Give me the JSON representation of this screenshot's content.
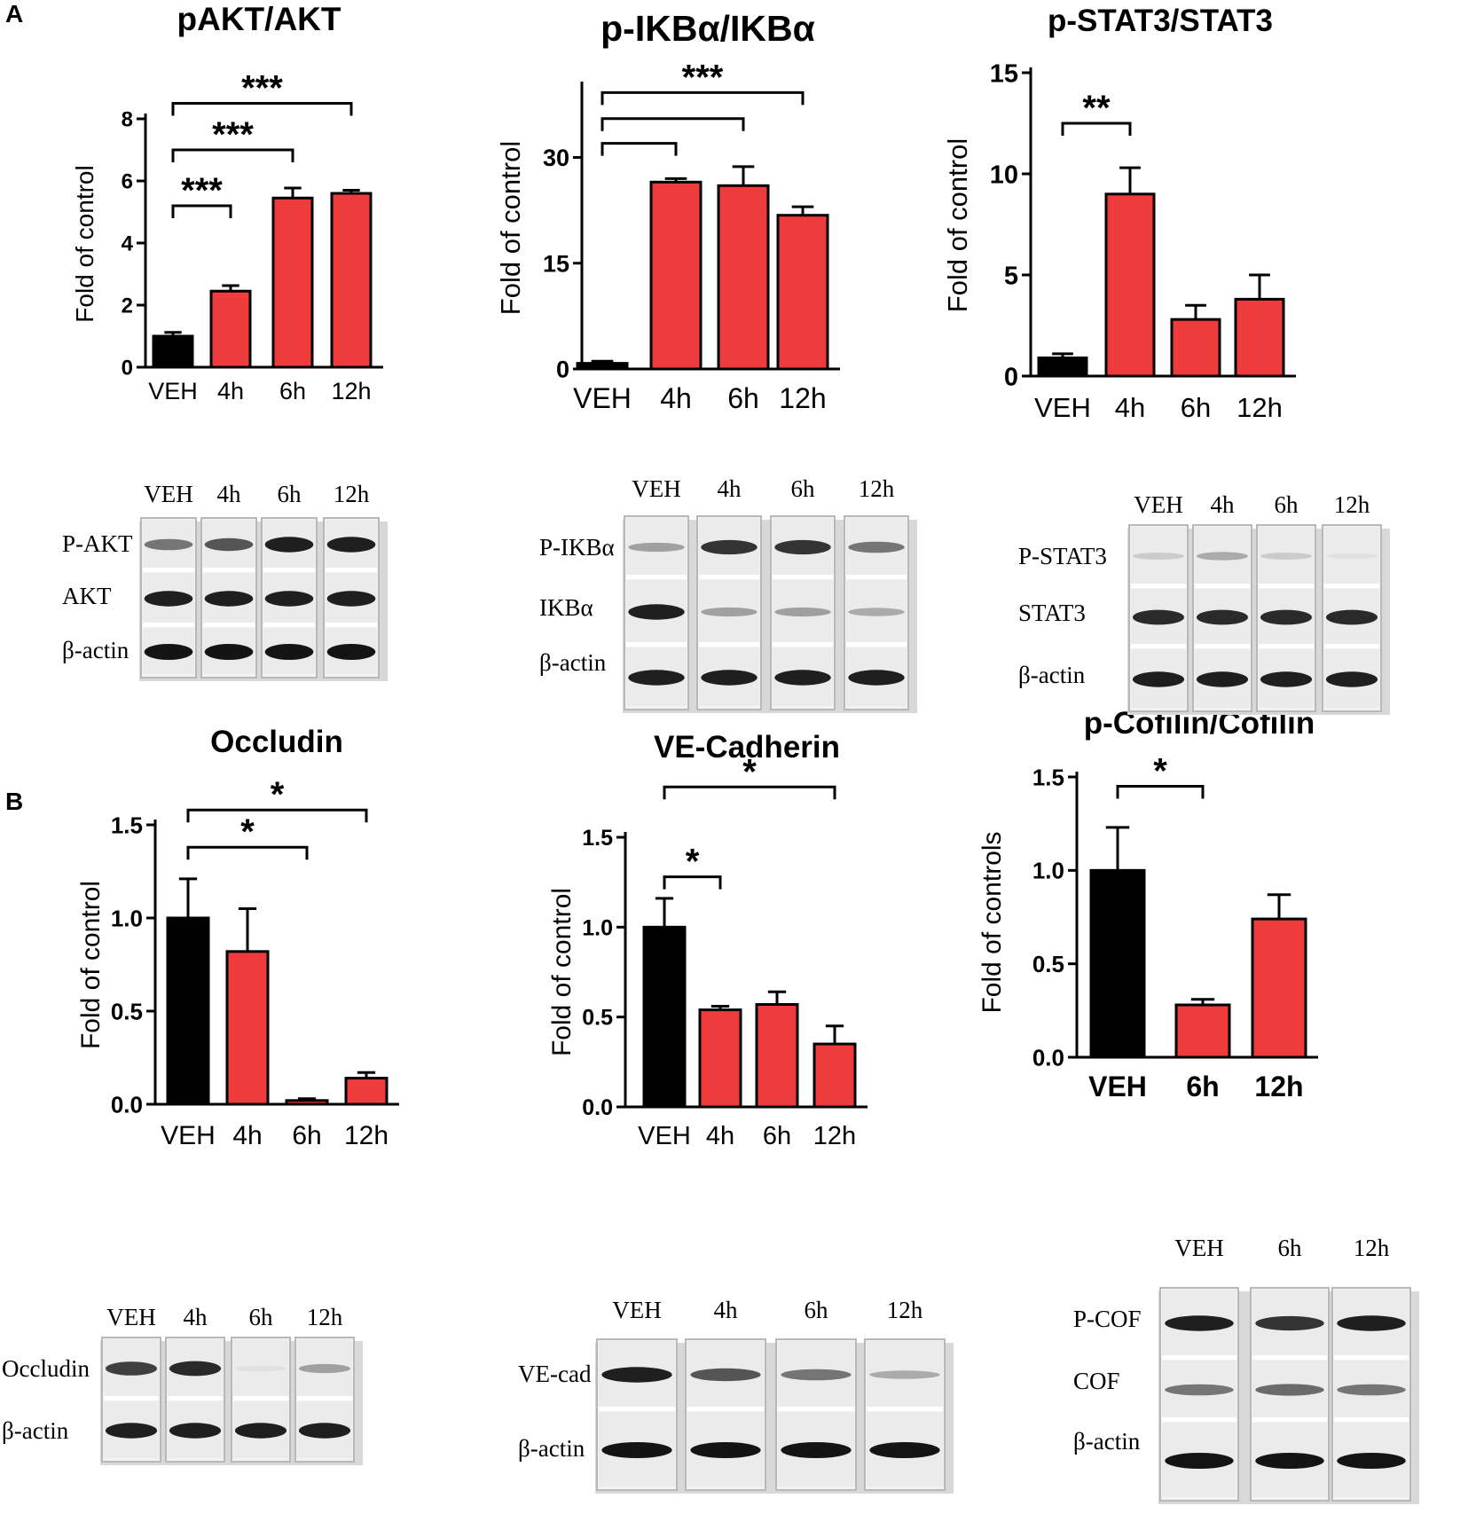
{
  "panel_labels": [
    "A",
    "B"
  ],
  "chart_data": [
    {
      "id": "pakt",
      "type": "bar",
      "title": "pAKT/AKT",
      "xlabel": "",
      "ylabel": "Fold of control",
      "ylim": [
        0,
        8
      ],
      "yticks": [
        0,
        2,
        4,
        6,
        8
      ],
      "categories": [
        "VEH",
        "4h",
        "6h",
        "12h"
      ],
      "values": [
        1.0,
        2.45,
        5.45,
        5.6
      ],
      "errors": [
        0.12,
        0.18,
        0.32,
        0.1
      ],
      "colors": [
        "#000000",
        "#ee3b3b",
        "#ee3b3b",
        "#ee3b3b"
      ],
      "significance": [
        {
          "from": 0,
          "to": 3,
          "label": "***",
          "level": 8.5
        },
        {
          "from": 0,
          "to": 2,
          "label": "***",
          "level": 7.0
        },
        {
          "from": 0,
          "to": 1,
          "label": "***",
          "level": 5.2
        }
      ]
    },
    {
      "id": "pikba",
      "type": "bar",
      "title": "p-IKBα/IKBα",
      "xlabel": "",
      "ylabel": "Fold of control",
      "ylim": [
        0,
        40
      ],
      "yticks": [
        0,
        15,
        30
      ],
      "categories": [
        "VEH",
        "4h",
        "6h",
        "12h"
      ],
      "values": [
        0.8,
        26.5,
        26.0,
        21.8
      ],
      "errors": [
        0.3,
        0.5,
        2.7,
        1.2
      ],
      "colors": [
        "#000000",
        "#ee3b3b",
        "#ee3b3b",
        "#ee3b3b"
      ],
      "significance": [
        {
          "from": 0,
          "to": 3,
          "label": "***",
          "level": 39.2
        },
        {
          "from": 0,
          "to": 2,
          "label": "",
          "level": 35.5
        },
        {
          "from": 0,
          "to": 1,
          "label": "",
          "level": 32.0
        }
      ]
    },
    {
      "id": "pstat3",
      "type": "bar",
      "title": "p-STAT3/STAT3",
      "xlabel": "",
      "ylabel": "Fold of control",
      "ylim": [
        0,
        15
      ],
      "yticks": [
        0,
        5,
        10,
        15
      ],
      "categories": [
        "VEH",
        "4h",
        "6h",
        "12h"
      ],
      "values": [
        0.9,
        9.0,
        2.8,
        3.8
      ],
      "errors": [
        0.2,
        1.3,
        0.7,
        1.2
      ],
      "colors": [
        "#000000",
        "#ee3b3b",
        "#ee3b3b",
        "#ee3b3b"
      ],
      "significance": [
        {
          "from": 0,
          "to": 1,
          "label": "**",
          "level": 12.5
        }
      ]
    },
    {
      "id": "occludin",
      "type": "bar",
      "title": "Occludin",
      "xlabel": "",
      "ylabel": "Fold of control",
      "ylim": [
        0,
        1.5
      ],
      "yticks": [
        0.0,
        0.5,
        1.0,
        1.5
      ],
      "categories": [
        "VEH",
        "4h",
        "6h",
        "12h"
      ],
      "values": [
        1.0,
        0.82,
        0.02,
        0.14
      ],
      "errors": [
        0.21,
        0.23,
        0.01,
        0.03
      ],
      "colors": [
        "#000000",
        "#ee3b3b",
        "#ee3b3b",
        "#ee3b3b"
      ],
      "significance": [
        {
          "from": 0,
          "to": 3,
          "label": "*",
          "level": 1.58
        },
        {
          "from": 0,
          "to": 2,
          "label": "*",
          "level": 1.38
        }
      ]
    },
    {
      "id": "vecad",
      "type": "bar",
      "title": "VE-Cadherin",
      "xlabel": "",
      "ylabel": "Fold of control",
      "ylim": [
        0,
        1.5
      ],
      "yticks": [
        0.0,
        0.5,
        1.0,
        1.5
      ],
      "categories": [
        "VEH",
        "4h",
        "6h",
        "12h"
      ],
      "values": [
        1.0,
        0.54,
        0.57,
        0.35
      ],
      "errors": [
        0.16,
        0.02,
        0.07,
        0.1
      ],
      "colors": [
        "#000000",
        "#ee3b3b",
        "#ee3b3b",
        "#ee3b3b"
      ],
      "significance": [
        {
          "from": 0,
          "to": 3,
          "label": "*",
          "level": 1.78
        },
        {
          "from": 0,
          "to": 1,
          "label": "*",
          "level": 1.28
        }
      ]
    },
    {
      "id": "pcofilin",
      "type": "bar",
      "title": "p-Cofilin/Cofilin",
      "xlabel": "",
      "ylabel": "Fold of controls",
      "ylim": [
        0,
        1.5
      ],
      "yticks": [
        0.0,
        0.5,
        1.0,
        1.5
      ],
      "categories": [
        "VEH",
        "6h",
        "12h"
      ],
      "values": [
        1.0,
        0.28,
        0.74
      ],
      "errors": [
        0.23,
        0.03,
        0.13
      ],
      "colors": [
        "#000000",
        "#ee3b3b",
        "#ee3b3b"
      ],
      "significance": [
        {
          "from": 0,
          "to": 1,
          "label": "*",
          "level": 1.45
        }
      ]
    }
  ],
  "blots": [
    {
      "id": "pakt",
      "lanes": [
        "VEH",
        "4h",
        "6h",
        "12h"
      ],
      "rows": [
        "P-AKT",
        "AKT",
        "β-actin"
      ]
    },
    {
      "id": "pikba",
      "lanes": [
        "VEH",
        "4h",
        "6h",
        "12h"
      ],
      "rows": [
        "P-IKBα",
        "IKBα",
        "β-actin"
      ]
    },
    {
      "id": "pstat3",
      "lanes": [
        "VEH",
        "4h",
        "6h",
        "12h"
      ],
      "rows": [
        "P-STAT3",
        "STAT3",
        "β-actin"
      ]
    },
    {
      "id": "occludin",
      "lanes": [
        "VEH",
        "4h",
        "6h",
        "12h"
      ],
      "rows": [
        "Occludin",
        "β-actin"
      ]
    },
    {
      "id": "vecad",
      "lanes": [
        "VEH",
        "4h",
        "6h",
        "12h"
      ],
      "rows": [
        "VE-cad",
        "β-actin"
      ]
    },
    {
      "id": "pcofilin",
      "lanes": [
        "VEH",
        "6h",
        "12h"
      ],
      "rows": [
        "P-COF",
        "COF",
        "β-actin"
      ]
    }
  ],
  "colors": {
    "veh": "#000000",
    "treated": "#ee3b3b"
  }
}
